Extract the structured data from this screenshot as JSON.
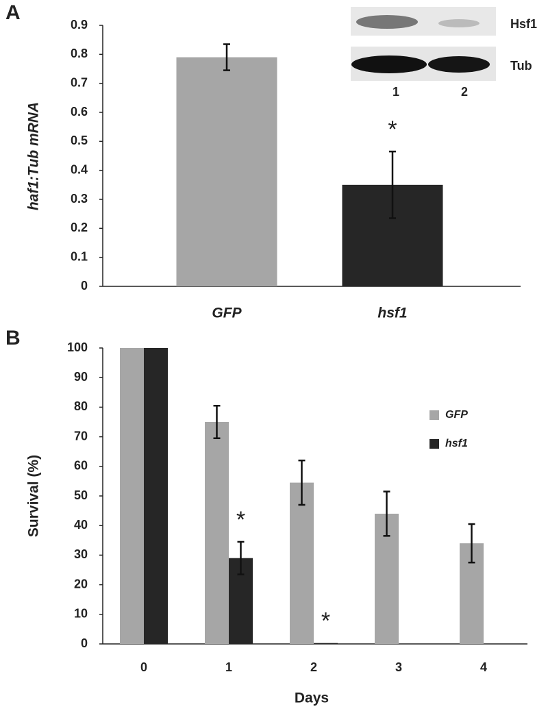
{
  "chart_data": [
    {
      "type": "bar",
      "panel": "A",
      "y_label": "haf1:Tub mRNA",
      "categories": [
        "GFP",
        "hsf1"
      ],
      "values": [
        0.79,
        0.35
      ],
      "errors": [
        0.045,
        0.115
      ],
      "colors": [
        "#a6a6a6",
        "#262626"
      ],
      "ylim": [
        0,
        0.9
      ],
      "yticks": [
        0,
        0.1,
        0.2,
        0.3,
        0.4,
        0.5,
        0.6,
        0.7,
        0.8,
        0.9
      ],
      "annotations": [
        "*"
      ],
      "inset": {
        "bands": [
          "Hsf1",
          "Tub"
        ],
        "lanes": [
          "1",
          "2"
        ]
      }
    },
    {
      "type": "grouped-bar",
      "panel": "B",
      "x_label": "Days",
      "y_label": "Survival (%)",
      "categories": [
        "0",
        "1",
        "2",
        "3",
        "4"
      ],
      "series": [
        {
          "name": "GFP",
          "color": "#a6a6a6",
          "values": [
            100,
            75,
            54.5,
            44,
            34
          ],
          "errors": [
            0,
            5.5,
            7.5,
            7.5,
            6.5
          ]
        },
        {
          "name": "hsf1",
          "color": "#262626",
          "values": [
            100,
            29,
            0.3,
            0,
            0
          ],
          "errors": [
            0,
            5.5,
            0,
            0,
            0
          ]
        }
      ],
      "ylim": [
        0,
        100
      ],
      "yticks": [
        0,
        10,
        20,
        30,
        40,
        50,
        60,
        70,
        80,
        90,
        100
      ],
      "annotations": [
        "*",
        "*"
      ]
    }
  ]
}
